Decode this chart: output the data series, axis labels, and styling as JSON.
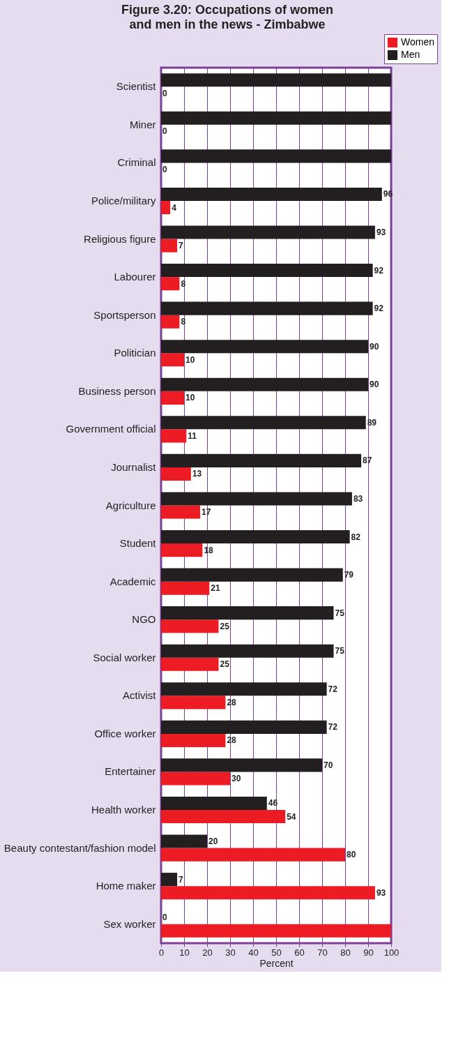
{
  "chart_data": {
    "type": "bar",
    "orientation": "horizontal",
    "title": "Figure 3.20: Occupations of women and men in the news - Zimbabwe",
    "xlabel": "Percent",
    "categories": [
      "Scientist",
      "Miner",
      "Criminal",
      "Police/military",
      "Religious figure",
      "Labourer",
      "Sportsperson",
      "Politician",
      "Business person",
      "Government official",
      "Journalist",
      "Agriculture",
      "Student",
      "Academic",
      "NGO",
      "Social worker",
      "Activist",
      "Office worker",
      "Entertainer",
      "Health worker",
      "Beauty contestant/fashion model",
      "Home maker",
      "Sex worker"
    ],
    "series": [
      {
        "name": "Women",
        "color": "#ed1c24",
        "values": [
          0,
          0,
          0,
          4,
          7,
          8,
          8,
          10,
          10,
          11,
          13,
          17,
          18,
          21,
          25,
          25,
          28,
          28,
          30,
          54,
          80,
          93,
          100
        ],
        "value_labels": [
          "0",
          "0",
          "0",
          "4",
          "7",
          "8",
          "8",
          "10",
          "10",
          "11",
          "13",
          "17",
          "18",
          "21",
          "25",
          "25",
          "28",
          "28",
          "30",
          "54",
          "80",
          "93",
          null
        ]
      },
      {
        "name": "Men",
        "color": "#231f20",
        "values": [
          100,
          100,
          100,
          96,
          93,
          92,
          92,
          90,
          90,
          89,
          87,
          83,
          82,
          79,
          75,
          75,
          72,
          72,
          70,
          46,
          20,
          7,
          0
        ],
        "value_labels": [
          null,
          null,
          null,
          "96",
          "93",
          "92",
          "92",
          "90",
          "90",
          "89",
          "87",
          "83",
          "82",
          "79",
          "75",
          "75",
          "72",
          "72",
          "70",
          "46",
          "20",
          "7",
          "0"
        ]
      }
    ],
    "xlim": [
      0,
      100
    ],
    "xticks": [
      0,
      10,
      20,
      30,
      40,
      50,
      60,
      70,
      80,
      90,
      100
    ],
    "grid": "x",
    "legend": "top right"
  }
}
